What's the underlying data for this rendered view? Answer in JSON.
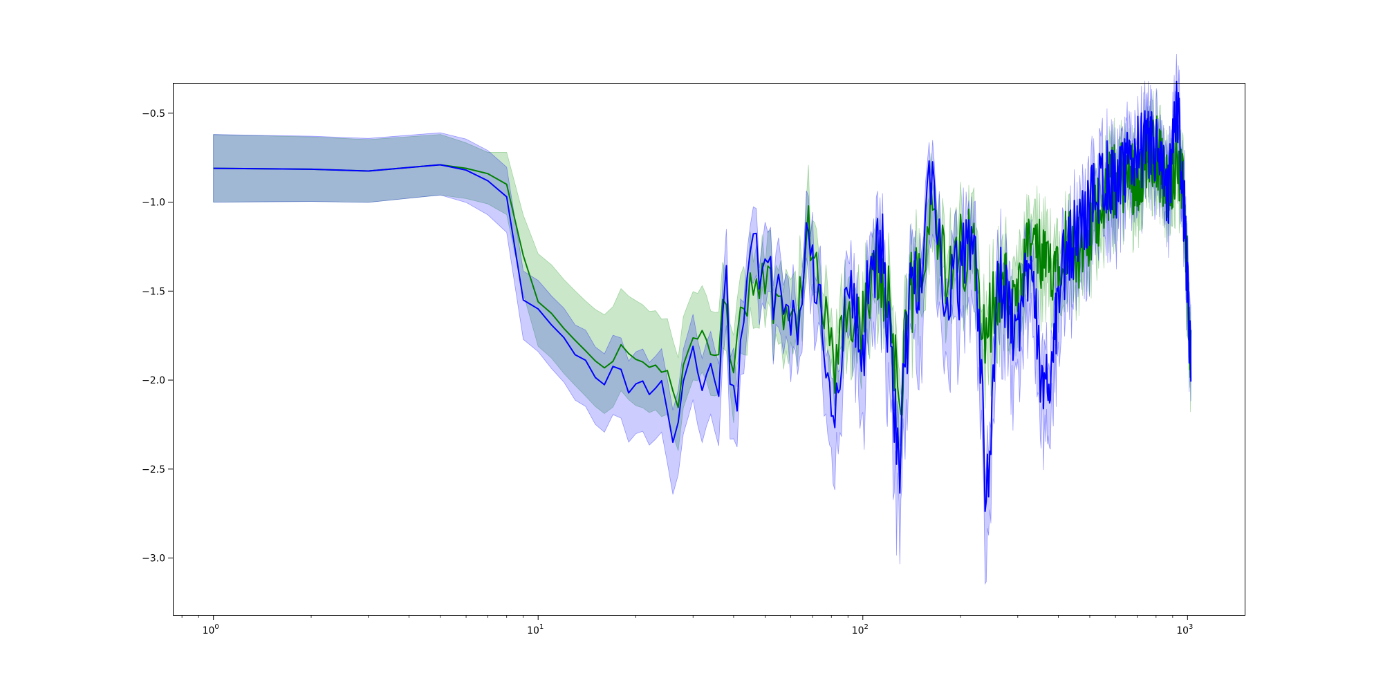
{
  "chart_data": {
    "type": "line",
    "title": "",
    "xlabel": "",
    "ylabel": "",
    "x_scale": "log",
    "xlim": [
      0.75,
      1500
    ],
    "ylim": [
      -3.32,
      -0.33
    ],
    "grid": false,
    "legend": "none",
    "x_ticks": [
      {
        "value": 1,
        "base": "10",
        "exp": "0"
      },
      {
        "value": 10,
        "base": "10",
        "exp": "1"
      },
      {
        "value": 100,
        "base": "10",
        "exp": "2"
      },
      {
        "value": 1000,
        "base": "10",
        "exp": "3"
      }
    ],
    "y_ticks": [
      {
        "value": -0.5,
        "label": "−0.5"
      },
      {
        "value": -1.0,
        "label": "−1.0"
      },
      {
        "value": -1.5,
        "label": "−1.5"
      },
      {
        "value": -2.0,
        "label": "−2.0"
      },
      {
        "value": -2.5,
        "label": "−2.5"
      },
      {
        "value": -3.0,
        "label": "−3.0"
      }
    ],
    "series": [
      {
        "color": "#008000",
        "band_color": "#2ca02c",
        "band_opacity": 0.25,
        "keypoints": [
          [
            1,
            -0.81
          ],
          [
            2,
            -0.815
          ],
          [
            3,
            -0.825
          ],
          [
            5,
            -0.79
          ],
          [
            6,
            -0.81
          ],
          [
            7,
            -0.84
          ],
          [
            8,
            -0.9
          ],
          [
            9,
            -1.3
          ],
          [
            10,
            -1.56
          ],
          [
            12,
            -1.7
          ],
          [
            14,
            -1.86
          ],
          [
            16,
            -1.94
          ],
          [
            18,
            -1.82
          ],
          [
            20,
            -1.9
          ],
          [
            22,
            -1.92
          ],
          [
            25,
            -1.95
          ],
          [
            27,
            -2.14
          ],
          [
            28,
            -1.93
          ],
          [
            30,
            -1.78
          ],
          [
            32,
            -1.72
          ],
          [
            34,
            -1.85
          ],
          [
            36,
            -1.85
          ],
          [
            38,
            -1.55
          ],
          [
            40,
            -1.96
          ],
          [
            44,
            -1.5
          ],
          [
            48,
            -1.37
          ],
          [
            52,
            -1.5
          ],
          [
            58,
            -1.55
          ],
          [
            62,
            -1.7
          ],
          [
            68,
            -1.2
          ],
          [
            75,
            -1.6
          ],
          [
            82,
            -1.94
          ],
          [
            90,
            -1.62
          ],
          [
            100,
            -1.72
          ],
          [
            110,
            -1.4
          ],
          [
            120,
            -1.5
          ],
          [
            130,
            -2.15
          ],
          [
            140,
            -1.55
          ],
          [
            150,
            -1.35
          ],
          [
            165,
            -0.88
          ],
          [
            180,
            -1.5
          ],
          [
            200,
            -1.3
          ],
          [
            220,
            -1.25
          ],
          [
            240,
            -1.7
          ],
          [
            270,
            -1.45
          ],
          [
            300,
            -1.6
          ],
          [
            330,
            -1.2
          ],
          [
            370,
            -1.4
          ],
          [
            420,
            -1.2
          ],
          [
            480,
            -1.3
          ],
          [
            550,
            -0.95
          ],
          [
            620,
            -0.85
          ],
          [
            700,
            -0.85
          ],
          [
            800,
            -0.7
          ],
          [
            870,
            -0.95
          ],
          [
            930,
            -0.7
          ],
          [
            980,
            -1.05
          ],
          [
            1020,
            -1.85
          ]
        ],
        "lower_width": [
          [
            1,
            0.19
          ],
          [
            5,
            0.17
          ],
          [
            8,
            0.17
          ],
          [
            10,
            0.25
          ],
          [
            20,
            0.26
          ],
          [
            40,
            0.22
          ],
          [
            100,
            0.2
          ],
          [
            300,
            0.22
          ],
          [
            1000,
            0.15
          ]
        ],
        "upper_width": [
          [
            1,
            0.19
          ],
          [
            5,
            0.17
          ],
          [
            7,
            0.12
          ],
          [
            8,
            0.18
          ],
          [
            10,
            0.27
          ],
          [
            14,
            0.28
          ],
          [
            20,
            0.33
          ],
          [
            30,
            0.26
          ],
          [
            50,
            0.2
          ],
          [
            100,
            0.18
          ],
          [
            300,
            0.18
          ],
          [
            1000,
            0.12
          ]
        ]
      },
      {
        "color": "#0000ff",
        "band_color": "#0000ff",
        "band_opacity": 0.2,
        "keypoints": [
          [
            1,
            -0.81
          ],
          [
            2,
            -0.815
          ],
          [
            3,
            -0.825
          ],
          [
            5,
            -0.79
          ],
          [
            6,
            -0.82
          ],
          [
            7,
            -0.88
          ],
          [
            8,
            -0.97
          ],
          [
            9,
            -1.55
          ],
          [
            10,
            -1.6
          ],
          [
            12,
            -1.76
          ],
          [
            14,
            -1.9
          ],
          [
            16,
            -2.04
          ],
          [
            17,
            -1.9
          ],
          [
            18,
            -1.95
          ],
          [
            19,
            -2.08
          ],
          [
            21,
            -2.0
          ],
          [
            22,
            -2.08
          ],
          [
            24,
            -2.02
          ],
          [
            26,
            -2.36
          ],
          [
            27,
            -2.25
          ],
          [
            28,
            -2.0
          ],
          [
            30,
            -1.82
          ],
          [
            32,
            -2.04
          ],
          [
            34,
            -1.92
          ],
          [
            36,
            -2.1
          ],
          [
            38,
            -1.3
          ],
          [
            39,
            -2.12
          ],
          [
            41,
            -2.15
          ],
          [
            44,
            -1.48
          ],
          [
            47,
            -1.27
          ],
          [
            52,
            -1.48
          ],
          [
            58,
            -1.62
          ],
          [
            62,
            -1.72
          ],
          [
            68,
            -1.18
          ],
          [
            75,
            -1.7
          ],
          [
            82,
            -2.2
          ],
          [
            90,
            -1.45
          ],
          [
            100,
            -1.82
          ],
          [
            105,
            -1.38
          ],
          [
            115,
            -1.28
          ],
          [
            122,
            -1.92
          ],
          [
            130,
            -2.4
          ],
          [
            140,
            -1.5
          ],
          [
            150,
            -1.35
          ],
          [
            165,
            -0.85
          ],
          [
            180,
            -1.6
          ],
          [
            200,
            -1.4
          ],
          [
            220,
            -1.1
          ],
          [
            240,
            -2.68
          ],
          [
            260,
            -1.45
          ],
          [
            300,
            -1.75
          ],
          [
            330,
            -1.2
          ],
          [
            360,
            -2.2
          ],
          [
            420,
            -1.3
          ],
          [
            480,
            -1.1
          ],
          [
            550,
            -0.85
          ],
          [
            620,
            -0.9
          ],
          [
            700,
            -0.7
          ],
          [
            800,
            -0.7
          ],
          [
            870,
            -1.0
          ],
          [
            930,
            -0.43
          ],
          [
            980,
            -1.1
          ],
          [
            1020,
            -1.9
          ]
        ],
        "lower_width": [
          [
            1,
            0.19
          ],
          [
            5,
            0.17
          ],
          [
            8,
            0.2
          ],
          [
            10,
            0.24
          ],
          [
            20,
            0.28
          ],
          [
            30,
            0.3
          ],
          [
            60,
            0.22
          ],
          [
            130,
            0.42
          ],
          [
            250,
            0.35
          ],
          [
            500,
            0.25
          ],
          [
            1000,
            0.18
          ]
        ],
        "upper_width": [
          [
            1,
            0.19
          ],
          [
            5,
            0.18
          ],
          [
            10,
            0.16
          ],
          [
            20,
            0.18
          ],
          [
            40,
            0.18
          ],
          [
            100,
            0.17
          ],
          [
            300,
            0.17
          ],
          [
            1000,
            0.14
          ]
        ]
      }
    ]
  }
}
